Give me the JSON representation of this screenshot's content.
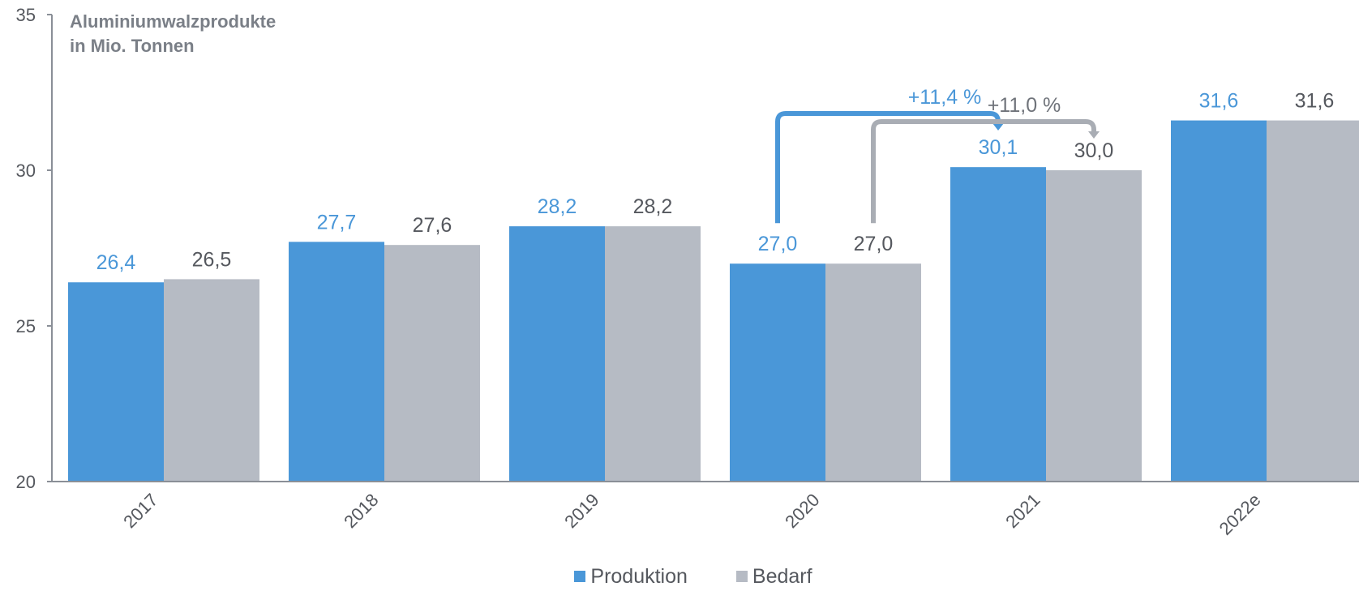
{
  "chart_data": {
    "type": "bar",
    "title": "Aluminiumwalzprodukte",
    "subtitle": "in Mio. Tonnen",
    "categories": [
      "2017",
      "2018",
      "2019",
      "2020",
      "2021",
      "2022e"
    ],
    "series": [
      {
        "name": "Produktion",
        "color": "#4a97d8",
        "values": [
          26.4,
          27.7,
          28.2,
          27.0,
          30.1,
          31.6
        ],
        "labels": [
          "26,4",
          "27,7",
          "28,2",
          "27,0",
          "30,1",
          "31,6"
        ]
      },
      {
        "name": "Bedarf",
        "color": "#b6bbc4",
        "values": [
          26.5,
          27.6,
          28.2,
          27.0,
          30.0,
          31.6
        ],
        "labels": [
          "26,5",
          "27,6",
          "28,2",
          "27,0",
          "30,0",
          "31,6"
        ]
      }
    ],
    "ylim": [
      20,
      35
    ],
    "yticks": [
      "20",
      "25",
      "30",
      "35"
    ],
    "annotations": [
      {
        "text": "+11,4 %",
        "series": "Produktion",
        "from": "2020",
        "to": "2021"
      },
      {
        "text": "+11,0 %",
        "series": "Bedarf",
        "from": "2020",
        "to": "2021"
      }
    ],
    "legend_position": "bottom",
    "grid": false
  }
}
